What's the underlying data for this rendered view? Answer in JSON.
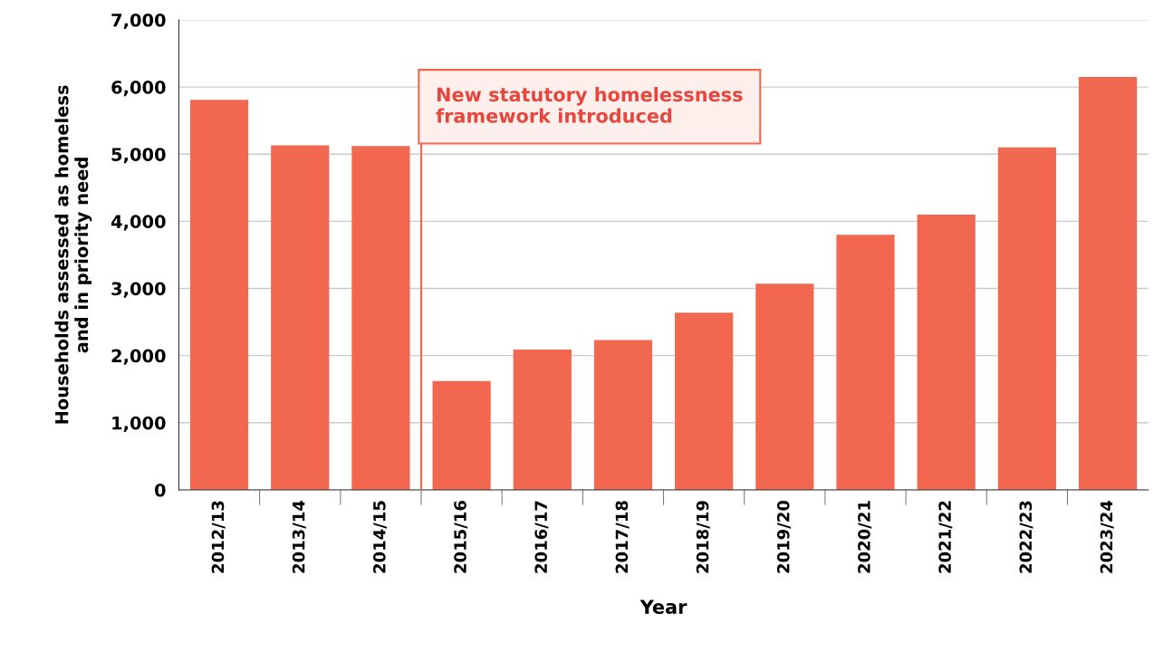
{
  "chart_data": {
    "type": "bar",
    "xlabel": "Year",
    "ylabel": "Households assessed as homeless\nand in priority need",
    "categories": [
      "2012/13",
      "2013/14",
      "2014/15",
      "2015/16",
      "2016/17",
      "2017/18",
      "2018/19",
      "2019/20",
      "2020/21",
      "2021/22",
      "2022/23",
      "2023/24"
    ],
    "values": [
      5810,
      5130,
      5120,
      1620,
      2090,
      2230,
      2640,
      3070,
      3800,
      4100,
      5100,
      6150
    ],
    "color": "#f26750",
    "ylim": [
      0,
      7000
    ],
    "yticks": [
      {
        "value": 0,
        "label": "0"
      },
      {
        "value": 1000,
        "label": "1,000"
      },
      {
        "value": 2000,
        "label": "2,000"
      },
      {
        "value": 3000,
        "label": "3,000"
      },
      {
        "value": 4000,
        "label": "4,000"
      },
      {
        "value": 5000,
        "label": "5,000"
      },
      {
        "value": 6000,
        "label": "6,000"
      },
      {
        "value": 7000,
        "label": "7,000"
      }
    ],
    "grid": "y",
    "legend": false,
    "ref_lines": [
      {
        "axis": "x",
        "value": "2015/16",
        "label": "New statutory homelessness\nframework introduced",
        "color": "#f26750"
      }
    ]
  }
}
